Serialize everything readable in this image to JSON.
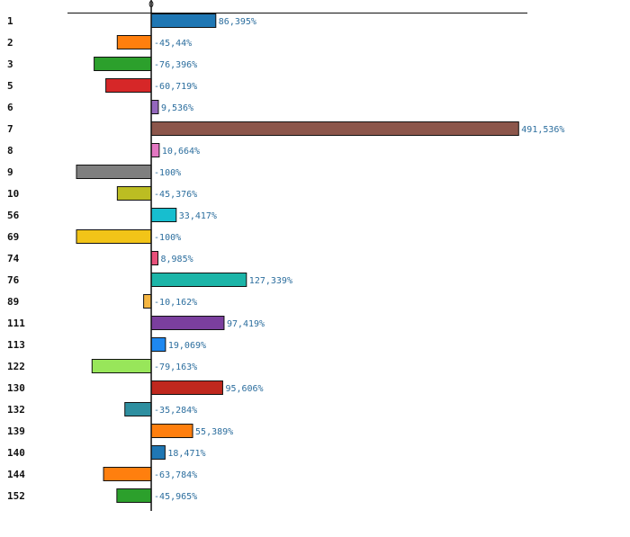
{
  "chart_data": {
    "type": "bar",
    "orientation": "horizontal",
    "x_ticks": [
      {
        "value": 0,
        "label": "0"
      }
    ],
    "xlim": [
      -106,
      496
    ],
    "grid": false,
    "legend": "none",
    "bars": [
      {
        "category": "1",
        "value": 86.395,
        "label": "86,395%",
        "color": "#1f77b4"
      },
      {
        "category": "2",
        "value": -45.44,
        "label": "-45,44%",
        "color": "#ff7f0e"
      },
      {
        "category": "3",
        "value": -76.396,
        "label": "-76,396%",
        "color": "#2ca02c"
      },
      {
        "category": "5",
        "value": -60.719,
        "label": "-60,719%",
        "color": "#d62728"
      },
      {
        "category": "6",
        "value": 9.536,
        "label": "9,536%",
        "color": "#9467bd"
      },
      {
        "category": "7",
        "value": 491.536,
        "label": "491,536%",
        "color": "#8c564b"
      },
      {
        "category": "8",
        "value": 10.664,
        "label": "10,664%",
        "color": "#e377c2"
      },
      {
        "category": "9",
        "value": -100,
        "label": "-100%",
        "color": "#7f7f7f"
      },
      {
        "category": "10",
        "value": -45.376,
        "label": "-45,376%",
        "color": "#bcbd22"
      },
      {
        "category": "56",
        "value": 33.417,
        "label": "33,417%",
        "color": "#17becf"
      },
      {
        "category": "69",
        "value": -100,
        "label": "-100%",
        "color": "#f2c418"
      },
      {
        "category": "74",
        "value": 8.985,
        "label": "8,985%",
        "color": "#e8507a"
      },
      {
        "category": "76",
        "value": 127.339,
        "label": "127,339%",
        "color": "#1cb5a8"
      },
      {
        "category": "89",
        "value": -10.162,
        "label": "-10,162%",
        "color": "#f5b642"
      },
      {
        "category": "111",
        "value": 97.419,
        "label": "97,419%",
        "color": "#7b3f9e"
      },
      {
        "category": "113",
        "value": 19.069,
        "label": "19,069%",
        "color": "#1e88f0"
      },
      {
        "category": "122",
        "value": -79.163,
        "label": "-79,163%",
        "color": "#98e65a"
      },
      {
        "category": "130",
        "value": 95.606,
        "label": "95,606%",
        "color": "#c0281e"
      },
      {
        "category": "132",
        "value": -35.284,
        "label": "-35,284%",
        "color": "#2e8fa0"
      },
      {
        "category": "139",
        "value": 55.389,
        "label": "55,389%",
        "color": "#ff7f0e"
      },
      {
        "category": "140",
        "value": 18.471,
        "label": "18,471%",
        "color": "#1f77b4"
      },
      {
        "category": "144",
        "value": -63.784,
        "label": "-63,784%",
        "color": "#ff7f0e"
      },
      {
        "category": "152",
        "value": -45.965,
        "label": "-45,965%",
        "color": "#2ca02c"
      }
    ]
  }
}
